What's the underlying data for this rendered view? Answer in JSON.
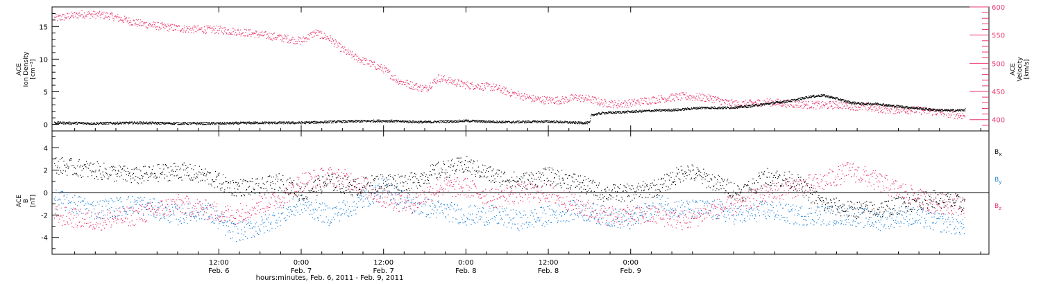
{
  "chart_data": [
    {
      "type": "scatter",
      "ylabel": "ACE Ion Density [cm^-3]",
      "ylabel_lines": [
        "ACE",
        "Ion Density",
        "[cm⁻³]"
      ],
      "ylim": [
        -1,
        18
      ],
      "yticks": [
        0,
        5,
        10,
        15
      ],
      "y2label": "ACE Velocity [km/s]",
      "y2label_lines": [
        "ACE",
        "Velocity",
        "[km/s]"
      ],
      "y2lim": [
        380,
        600
      ],
      "y2ticks": [
        400,
        450,
        500,
        550,
        600
      ],
      "series": [
        {
          "axis": "left",
          "color": "#000000",
          "points": [
            [
              -36,
              0.3
            ],
            [
              -30,
              0.2
            ],
            [
              -24,
              0.3
            ],
            [
              -18,
              0.2
            ],
            [
              -12,
              0.2
            ],
            [
              -6,
              0.3
            ],
            [
              0,
              0.3
            ],
            [
              6,
              0.5
            ],
            [
              12,
              0.6
            ],
            [
              18,
              0.4
            ],
            [
              24,
              0.6
            ],
            [
              30,
              0.4
            ],
            [
              36,
              0.5
            ],
            [
              40,
              0.3
            ],
            [
              42,
              0.3
            ],
            [
              42.2,
              1.5
            ],
            [
              44,
              1.8
            ],
            [
              48,
              2
            ],
            [
              52,
              2.2
            ],
            [
              55,
              2.3
            ],
            [
              58,
              2.6
            ],
            [
              62,
              2.6
            ],
            [
              65,
              2.8
            ],
            [
              67,
              3.1
            ],
            [
              70,
              3.5
            ],
            [
              72,
              3.8
            ],
            [
              74,
              4.3
            ],
            [
              76,
              4.5
            ],
            [
              78,
              4
            ],
            [
              80,
              3.4
            ],
            [
              82,
              3.2
            ],
            [
              84,
              3.2
            ],
            [
              86,
              2.9
            ],
            [
              88,
              2.7
            ],
            [
              90,
              2.5
            ],
            [
              92,
              2.3
            ],
            [
              94,
              2.2
            ],
            [
              96,
              2.2
            ],
            [
              96.7,
              2.3
            ]
          ]
        },
        {
          "axis": "right",
          "color": "#e8356a",
          "points": [
            [
              -36,
              580
            ],
            [
              -32,
              588
            ],
            [
              -28,
              585
            ],
            [
              -24,
              572
            ],
            [
              -20,
              565
            ],
            [
              -16,
              561
            ],
            [
              -12,
              560
            ],
            [
              -8,
              555
            ],
            [
              -4,
              548
            ],
            [
              0,
              540
            ],
            [
              2,
              555
            ],
            [
              4,
              545
            ],
            [
              6,
              525
            ],
            [
              8,
              510
            ],
            [
              10,
              500
            ],
            [
              12,
              490
            ],
            [
              14,
              470
            ],
            [
              16,
              462
            ],
            [
              18,
              455
            ],
            [
              20,
              475
            ],
            [
              22,
              468
            ],
            [
              24,
              462
            ],
            [
              26,
              460
            ],
            [
              28,
              458
            ],
            [
              30,
              450
            ],
            [
              32,
              443
            ],
            [
              34,
              437
            ],
            [
              36,
              435
            ],
            [
              38,
              435
            ],
            [
              40,
              440
            ],
            [
              42,
              437
            ],
            [
              44,
              430
            ],
            [
              46,
              428
            ],
            [
              48,
              430
            ],
            [
              50,
              434
            ],
            [
              52,
              437
            ],
            [
              54,
              440
            ],
            [
              56,
              442
            ],
            [
              58,
              440
            ],
            [
              60,
              438
            ],
            [
              62,
              430
            ],
            [
              64,
              428
            ],
            [
              66,
              430
            ],
            [
              68,
              432
            ],
            [
              70,
              430
            ],
            [
              72,
              428
            ],
            [
              74,
              427
            ],
            [
              76,
              426
            ],
            [
              78,
              427
            ],
            [
              80,
              425
            ],
            [
              82,
              423
            ],
            [
              84,
              420
            ],
            [
              86,
              418
            ],
            [
              88,
              418
            ],
            [
              90,
              417
            ],
            [
              92,
              415
            ],
            [
              94,
              412
            ],
            [
              96,
              408
            ],
            [
              96.7,
              408
            ]
          ]
        }
      ]
    },
    {
      "type": "scatter",
      "ylabel": "ACE B [nT]",
      "ylabel_lines": [
        "ACE",
        "B",
        "[nT]"
      ],
      "ylim": [
        -5.5,
        5.5
      ],
      "yticks": [
        -4,
        -2,
        0,
        2,
        4
      ],
      "zero_line": true,
      "series": [
        {
          "name": "Bx",
          "color": "#000000",
          "points": [
            [
              -36,
              2.5
            ],
            [
              -30,
              2
            ],
            [
              -24,
              1.5
            ],
            [
              -18,
              2
            ],
            [
              -14,
              1.5
            ],
            [
              -10,
              0.5
            ],
            [
              -6,
              0.5
            ],
            [
              -3,
              1
            ],
            [
              0,
              0
            ],
            [
              4,
              1
            ],
            [
              8,
              0.5
            ],
            [
              12,
              1
            ],
            [
              16,
              1
            ],
            [
              20,
              2
            ],
            [
              24,
              2.5
            ],
            [
              28,
              1.5
            ],
            [
              32,
              1
            ],
            [
              36,
              1.5
            ],
            [
              40,
              1
            ],
            [
              44,
              0
            ],
            [
              48,
              0
            ],
            [
              52,
              0.5
            ],
            [
              56,
              2
            ],
            [
              60,
              1
            ],
            [
              64,
              0
            ],
            [
              68,
              1.5
            ],
            [
              72,
              1
            ],
            [
              76,
              -1
            ],
            [
              80,
              -1.5
            ],
            [
              84,
              -1.5
            ],
            [
              88,
              -1
            ],
            [
              92,
              -0.5
            ],
            [
              96.7,
              -1
            ]
          ]
        },
        {
          "name": "By",
          "color": "#1a7fd6",
          "points": [
            [
              -36,
              -0.5
            ],
            [
              -30,
              -1.5
            ],
            [
              -24,
              -1
            ],
            [
              -18,
              -2
            ],
            [
              -14,
              -1.5
            ],
            [
              -10,
              -3.5
            ],
            [
              -6,
              -3
            ],
            [
              -3,
              -2
            ],
            [
              0,
              -1
            ],
            [
              4,
              -2
            ],
            [
              8,
              -1
            ],
            [
              12,
              0.5
            ],
            [
              16,
              -1
            ],
            [
              20,
              -1.5
            ],
            [
              24,
              -2
            ],
            [
              28,
              -2
            ],
            [
              32,
              -2.5
            ],
            [
              36,
              -2
            ],
            [
              40,
              -1.5
            ],
            [
              44,
              -2
            ],
            [
              48,
              -2.5
            ],
            [
              52,
              -1
            ],
            [
              56,
              -1.5
            ],
            [
              60,
              -1.5
            ],
            [
              64,
              -2
            ],
            [
              68,
              -1.5
            ],
            [
              72,
              -2
            ],
            [
              76,
              -2
            ],
            [
              80,
              -2
            ],
            [
              84,
              -2.5
            ],
            [
              88,
              -2
            ],
            [
              92,
              -2.5
            ],
            [
              96.7,
              -3
            ]
          ]
        },
        {
          "name": "Bz",
          "color": "#e8356a",
          "points": [
            [
              -36,
              -2
            ],
            [
              -30,
              -2.5
            ],
            [
              -24,
              -2
            ],
            [
              -18,
              -1
            ],
            [
              -14,
              -1.5
            ],
            [
              -10,
              -2
            ],
            [
              -6,
              -1
            ],
            [
              -3,
              -0.5
            ],
            [
              0,
              1
            ],
            [
              4,
              1.5
            ],
            [
              8,
              1
            ],
            [
              12,
              -0.5
            ],
            [
              16,
              -1
            ],
            [
              20,
              0.5
            ],
            [
              24,
              0.5
            ],
            [
              28,
              -0.5
            ],
            [
              32,
              0
            ],
            [
              36,
              0
            ],
            [
              40,
              -1
            ],
            [
              44,
              -2
            ],
            [
              48,
              -2
            ],
            [
              52,
              -2
            ],
            [
              56,
              -2.5
            ],
            [
              60,
              -1.5
            ],
            [
              64,
              -1
            ],
            [
              68,
              0
            ],
            [
              72,
              0.5
            ],
            [
              76,
              1
            ],
            [
              80,
              2
            ],
            [
              84,
              1
            ],
            [
              88,
              0
            ],
            [
              92,
              -1
            ],
            [
              96.7,
              -1
            ]
          ]
        }
      ]
    }
  ],
  "x_axis": {
    "xlim": [
      -36.3,
      100.2
    ],
    "ticks": [
      {
        "t": -12,
        "time": "12:00",
        "date": "Feb. 6"
      },
      {
        "t": 0,
        "time": "0:00",
        "date": "Feb. 7"
      },
      {
        "t": 12,
        "time": "12:00",
        "date": "Feb. 7"
      },
      {
        "t": 24,
        "time": "0:00",
        "date": "Feb. 8"
      },
      {
        "t": 36,
        "time": "12:00",
        "date": "Feb. 8"
      },
      {
        "t": 48,
        "time": "0:00",
        "date": "Feb. 9"
      }
    ],
    "title": "hours:minutes, Feb.  6, 2011 - Feb.  9, 2011"
  },
  "legend": [
    {
      "base": "B",
      "sub": "x",
      "color": "#000000"
    },
    {
      "base": "B",
      "sub": "y",
      "color": "#1a7fd6"
    },
    {
      "base": "B",
      "sub": "z",
      "color": "#e8356a"
    }
  ]
}
